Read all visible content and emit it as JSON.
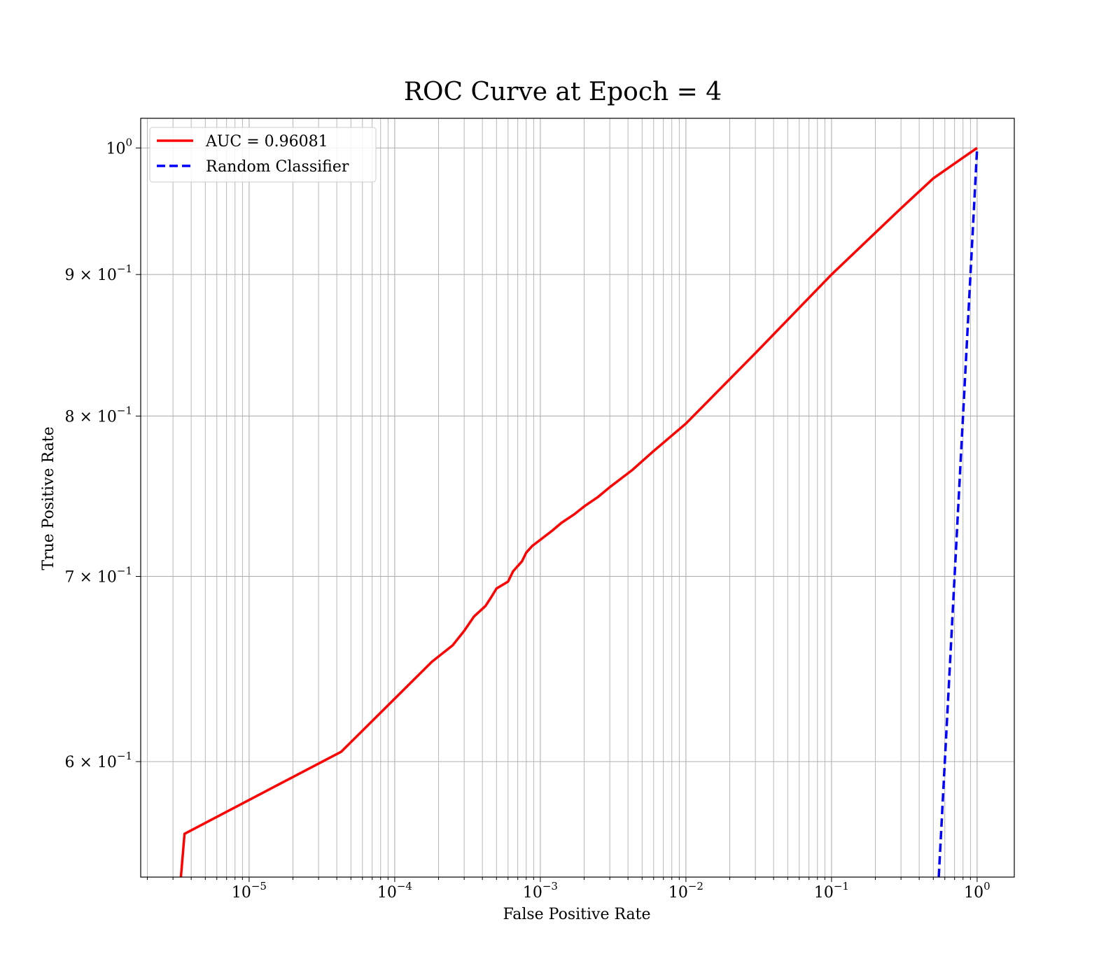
{
  "chart_data": {
    "type": "line",
    "title": "ROC Curve at Epoch = 4",
    "xlabel": "False Positive Rate",
    "ylabel": "True Positive Rate",
    "xscale": "log",
    "yscale": "log",
    "xlim": [
      1.8e-06,
      1.8
    ],
    "ylim": [
      0.545,
      1.025
    ],
    "grid": true,
    "grid_which": "both",
    "legend_position": "top-left",
    "x_ticks": [
      {
        "value": 1e-05,
        "base": "10",
        "exp": "−5"
      },
      {
        "value": 0.0001,
        "base": "10",
        "exp": "−4"
      },
      {
        "value": 0.001,
        "base": "10",
        "exp": "−3"
      },
      {
        "value": 0.01,
        "base": "10",
        "exp": "−2"
      },
      {
        "value": 0.1,
        "base": "10",
        "exp": "−1"
      },
      {
        "value": 1,
        "base": "10",
        "exp": "0"
      }
    ],
    "y_ticks": [
      {
        "value": 1.0,
        "base": "10",
        "exp": "0"
      },
      {
        "value": 0.9,
        "base": "9 × 10",
        "exp": "−1"
      },
      {
        "value": 0.8,
        "base": "8 × 10",
        "exp": "−1"
      },
      {
        "value": 0.7,
        "base": "7 × 10",
        "exp": "−1"
      },
      {
        "value": 0.6,
        "base": "6 × 10",
        "exp": "−1"
      }
    ],
    "series": [
      {
        "name": "AUC = 0.96081",
        "color": "#ff0000",
        "style": "solid",
        "x": [
          3.4e-06,
          3.6e-06,
          4.3e-05,
          0.00018,
          0.00025,
          0.0003,
          0.00035,
          0.00042,
          0.00046,
          0.0005,
          0.0006,
          0.00065,
          0.00075,
          0.0008,
          0.00088,
          0.0012,
          0.0014,
          0.0017,
          0.002,
          0.0025,
          0.003,
          0.0043,
          0.006,
          0.01,
          0.03,
          0.1,
          0.3,
          0.5,
          0.8,
          1.0
        ],
        "y": [
          0.545,
          0.565,
          0.605,
          0.652,
          0.661,
          0.669,
          0.677,
          0.683,
          0.688,
          0.693,
          0.697,
          0.703,
          0.709,
          0.714,
          0.718,
          0.727,
          0.732,
          0.737,
          0.742,
          0.748,
          0.754,
          0.765,
          0.777,
          0.795,
          0.843,
          0.9,
          0.951,
          0.975,
          0.992,
          1.0
        ]
      },
      {
        "name": "Random Classifier",
        "color": "#0000ff",
        "style": "dashed",
        "x": [
          0.545,
          0.6,
          0.7,
          0.8,
          0.9,
          1.0
        ],
        "y": [
          0.545,
          0.6,
          0.7,
          0.8,
          0.9,
          1.0
        ]
      }
    ]
  }
}
